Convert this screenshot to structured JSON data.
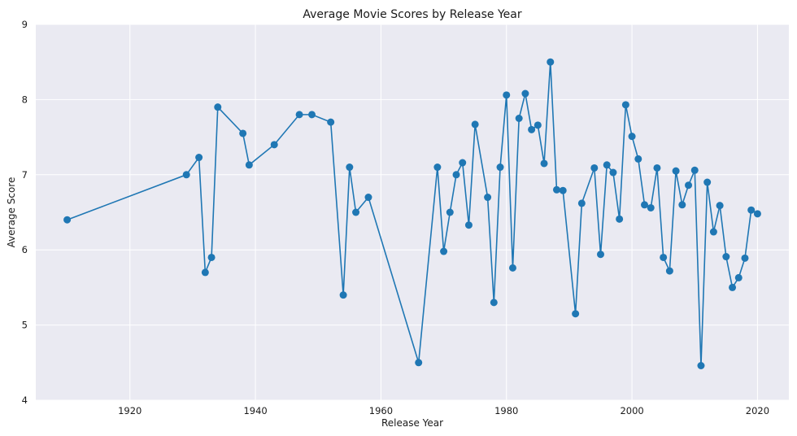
{
  "chart_data": {
    "type": "line",
    "title": "Average Movie Scores by Release Year",
    "xlabel": "Release Year",
    "ylabel": "Average Score",
    "xlim": [
      1905,
      2025
    ],
    "ylim": [
      4,
      9
    ],
    "xticks": [
      1920,
      1940,
      1960,
      1980,
      2000,
      2020
    ],
    "yticks": [
      4,
      5,
      6,
      7,
      8,
      9
    ],
    "grid": true,
    "color": "#1f77b4",
    "background": "#eaeaf2",
    "series": [
      {
        "marker": "circle",
        "points": [
          [
            1910,
            6.4
          ],
          [
            1929,
            7.0
          ],
          [
            1931,
            7.23
          ],
          [
            1932,
            5.7
          ],
          [
            1933,
            5.9
          ],
          [
            1934,
            7.9
          ],
          [
            1938,
            7.55
          ],
          [
            1939,
            7.13
          ],
          [
            1943,
            7.4
          ],
          [
            1947,
            7.8
          ],
          [
            1949,
            7.8
          ],
          [
            1952,
            7.7
          ],
          [
            1954,
            5.4
          ],
          [
            1955,
            7.1
          ],
          [
            1956,
            6.5
          ],
          [
            1958,
            6.7
          ],
          [
            1966,
            4.5
          ],
          [
            1969,
            7.1
          ],
          [
            1970,
            5.98
          ],
          [
            1971,
            6.5
          ],
          [
            1972,
            7.0
          ],
          [
            1973,
            7.16
          ],
          [
            1974,
            6.33
          ],
          [
            1975,
            7.67
          ],
          [
            1977,
            6.7
          ],
          [
            1978,
            5.3
          ],
          [
            1979,
            7.1
          ],
          [
            1980,
            8.06
          ],
          [
            1981,
            5.76
          ],
          [
            1982,
            7.75
          ],
          [
            1983,
            8.08
          ],
          [
            1984,
            7.6
          ],
          [
            1985,
            7.66
          ],
          [
            1986,
            7.15
          ],
          [
            1987,
            8.5
          ],
          [
            1988,
            6.8
          ],
          [
            1989,
            6.79
          ],
          [
            1991,
            5.15
          ],
          [
            1992,
            6.62
          ],
          [
            1994,
            7.09
          ],
          [
            1995,
            5.94
          ],
          [
            1996,
            7.13
          ],
          [
            1997,
            7.03
          ],
          [
            1998,
            6.41
          ],
          [
            1999,
            7.93
          ],
          [
            2000,
            7.51
          ],
          [
            2001,
            7.21
          ],
          [
            2002,
            6.6
          ],
          [
            2003,
            6.56
          ],
          [
            2004,
            7.09
          ],
          [
            2005,
            5.9
          ],
          [
            2006,
            5.72
          ],
          [
            2007,
            7.05
          ],
          [
            2008,
            6.6
          ],
          [
            2009,
            6.86
          ],
          [
            2010,
            7.06
          ],
          [
            2011,
            4.46
          ],
          [
            2012,
            6.9
          ],
          [
            2013,
            6.24
          ],
          [
            2014,
            6.59
          ],
          [
            2015,
            5.91
          ],
          [
            2016,
            5.5
          ],
          [
            2017,
            5.63
          ],
          [
            2018,
            5.89
          ],
          [
            2019,
            6.53
          ],
          [
            2020,
            6.48
          ]
        ]
      }
    ]
  }
}
